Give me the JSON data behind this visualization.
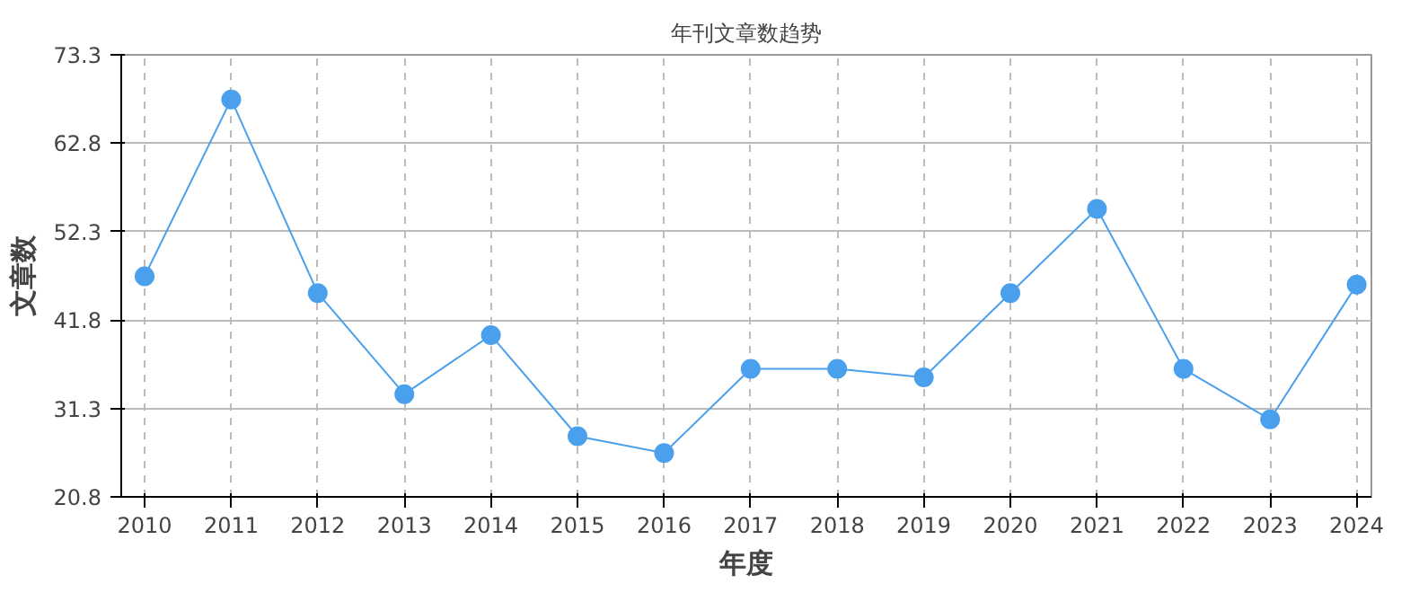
{
  "chart_data": {
    "type": "line",
    "title": "年刊文章数趋势",
    "xlabel": "年度",
    "ylabel": "文章数",
    "x": [
      2010,
      2011,
      2012,
      2013,
      2014,
      2015,
      2016,
      2017,
      2018,
      2019,
      2020,
      2021,
      2022,
      2023,
      2024
    ],
    "series": [
      {
        "color": "#4aa0ec",
        "values": [
          47,
          68,
          45,
          33,
          40,
          28,
          26,
          36,
          36,
          35,
          45,
          55,
          36,
          30,
          46
        ]
      }
    ],
    "xlim": [
      2009.73,
      2024.17
    ],
    "xticks": [
      2010,
      2011,
      2012,
      2013,
      2014,
      2015,
      2016,
      2017,
      2018,
      2019,
      2020,
      2021,
      2022,
      2023,
      2024
    ],
    "ylim": [
      20.8,
      73.3
    ],
    "yticks": [
      20.8,
      31.3,
      41.8,
      52.3,
      62.8,
      73.3
    ],
    "grid": true,
    "marker": "circle",
    "line_style": "solid"
  }
}
